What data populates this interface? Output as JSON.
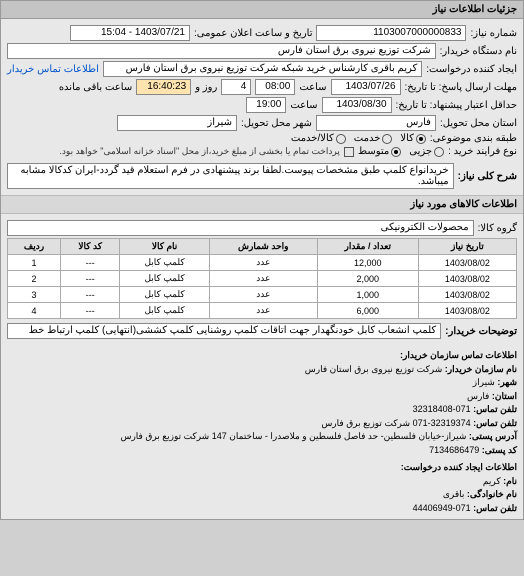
{
  "header": {
    "title": "جزئیات اطلاعات نیاز"
  },
  "fields": {
    "need_number_label": "شماره نیاز:",
    "need_number": "1103007000000833",
    "announce_label": "تاریخ و ساعت اعلان عمومی:",
    "announce_value": "1403/07/21 - 15:04",
    "buyer_label": "نام دستگاه خریدار:",
    "buyer_value": "شرکت توزیع نیروی برق استان فارس",
    "creator_label": "ایجاد کننده درخواست:",
    "creator_value": "کریم باقری کارشناس خرید شبکه شرکت توزیع نیروی برق استان فارس",
    "contact_link": "اطلاعات تماس خریدار",
    "deadline_label": "مهلت ارسال پاسخ: تا تاریخ:",
    "deadline_date": "1403/07/26",
    "deadline_time_label": "ساعت",
    "deadline_time": "08:00",
    "days_label": "روز و",
    "days_value": "4",
    "remaining_label": "ساعت باقی مانده",
    "remaining_time": "16:40:23",
    "validity_label": "حداقل اعتبار پیشنهاد: تا تاریخ:",
    "validity_date": "1403/08/30",
    "validity_time_label": "ساعت",
    "validity_time": "19:00",
    "province_label": "استان محل تحویل:",
    "province_value": "فارس",
    "city_label": "شهر محل تحویل:",
    "city_value": "شیراز",
    "class_label": "طبقه بندی موضوعی:",
    "class_opts": [
      "کالا",
      "خدمت",
      "کالا/خدمت"
    ],
    "payment_label": "نوع فرایند خرید :",
    "payment_opts": [
      "جزیی",
      "متوسط"
    ],
    "payment_note_checkbox": "پرداخت تمام یا بخشی از مبلغ خرید،از محل \"اسناد خزانه اسلامی\" خواهد بود.",
    "desc_label": "شرح کلی نیاز:",
    "desc_value": "خریدانواع کلمپ طبق مشخصات پیوست.لطفا برند پیشنهادی در فرم استعلام قید گردد-ایران کدکالا مشابه میباشد.",
    "goods_section": "اطلاعات کالاهای مورد نیاز",
    "group_label": "گروه کالا:",
    "group_value": "محصولات الکترونیکی",
    "buyer_note_label": "توضیحات خریدار:",
    "buyer_note_value": "کلمپ انشعاب کابل خودنگهدار جهت اتاقات کلمپ روشنایی کلمپ کششی(انتهایی) کلمپ ارتباط خط"
  },
  "table": {
    "headers": [
      "ردیف",
      "کد کالا",
      "نام کالا",
      "واحد شمارش",
      "تعداد / مقدار",
      "تاریخ نیاز"
    ],
    "rows": [
      [
        "1",
        "---",
        "کلمپ کابل",
        "عدد",
        "12,000",
        "1403/08/02"
      ],
      [
        "2",
        "---",
        "کلمپ کابل",
        "عدد",
        "2,000",
        "1403/08/02"
      ],
      [
        "3",
        "---",
        "کلمپ کابل",
        "عدد",
        "1,000",
        "1403/08/02"
      ],
      [
        "4",
        "---",
        "کلمپ کابل",
        "عدد",
        "6,000",
        "1403/08/02"
      ]
    ]
  },
  "footer": {
    "contact_section": "اطلاعات تماس سازمان خریدار:",
    "org_label": "نام سازمان خریدار:",
    "org_value": "شرکت توزیع نیروی برق استان فارس",
    "city_label": "شهر:",
    "city_value": "شیراز",
    "province_label": "استان:",
    "province_value": "فارس",
    "phone_label": "تلفن تماس:",
    "phone_value": "071-32318408",
    "fax_label": "تلفن تماس:",
    "fax_value": "32319374-071 شرکت توزیع برق فارس",
    "address_label": "آدرس پستی:",
    "address_value": "شیراز-خیابان فلسطین- حد فاصل فلسطین و ملاصدرا - ساختمان 147 شرکت توزیع برق فارس",
    "postal_label": "کد پستی:",
    "postal_value": "7134686479",
    "creator_section": "اطلاعات ایجاد کننده درخواست:",
    "name_label": "نام:",
    "name_value": "کریم",
    "family_label": "نام خانوادگی:",
    "family_value": "باقری",
    "creator_phone_label": "تلفن تماس:",
    "creator_phone_value": "071-44406949"
  }
}
